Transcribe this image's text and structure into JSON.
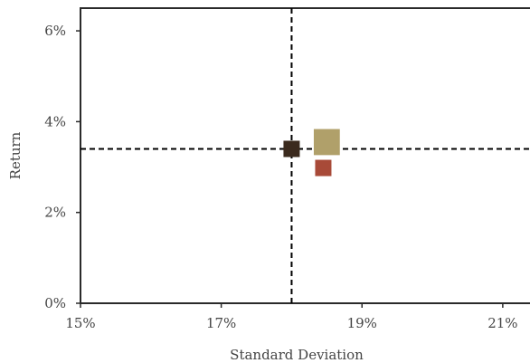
{
  "chart_data": {
    "type": "scatter",
    "title": "",
    "xlabel": "Standard Deviation",
    "ylabel": "Return",
    "xlim": [
      15,
      21.4
    ],
    "ylim": [
      0,
      6.5
    ],
    "xticks": [
      {
        "value": 15,
        "label": "15%"
      },
      {
        "value": 17,
        "label": "17%"
      },
      {
        "value": 19,
        "label": "19%"
      },
      {
        "value": 21,
        "label": "21%"
      }
    ],
    "yticks": [
      {
        "value": 0,
        "label": "0%"
      },
      {
        "value": 2,
        "label": "2%"
      },
      {
        "value": 4,
        "label": "4%"
      },
      {
        "value": 6,
        "label": "6%"
      }
    ],
    "grid": false,
    "reference_lines": {
      "x": 18.0,
      "y": 3.4,
      "style": "dashed",
      "color": "#000000"
    },
    "points": [
      {
        "x": 18.0,
        "y": 3.4,
        "color": "#3b2a1d",
        "marker": "square",
        "relative_size": 1.0
      },
      {
        "x": 18.5,
        "y": 3.55,
        "color": "#b0a06a",
        "marker": "square",
        "relative_size": 1.6
      },
      {
        "x": 18.45,
        "y": 2.98,
        "color": "#a84a38",
        "marker": "square",
        "relative_size": 1.0
      }
    ]
  }
}
